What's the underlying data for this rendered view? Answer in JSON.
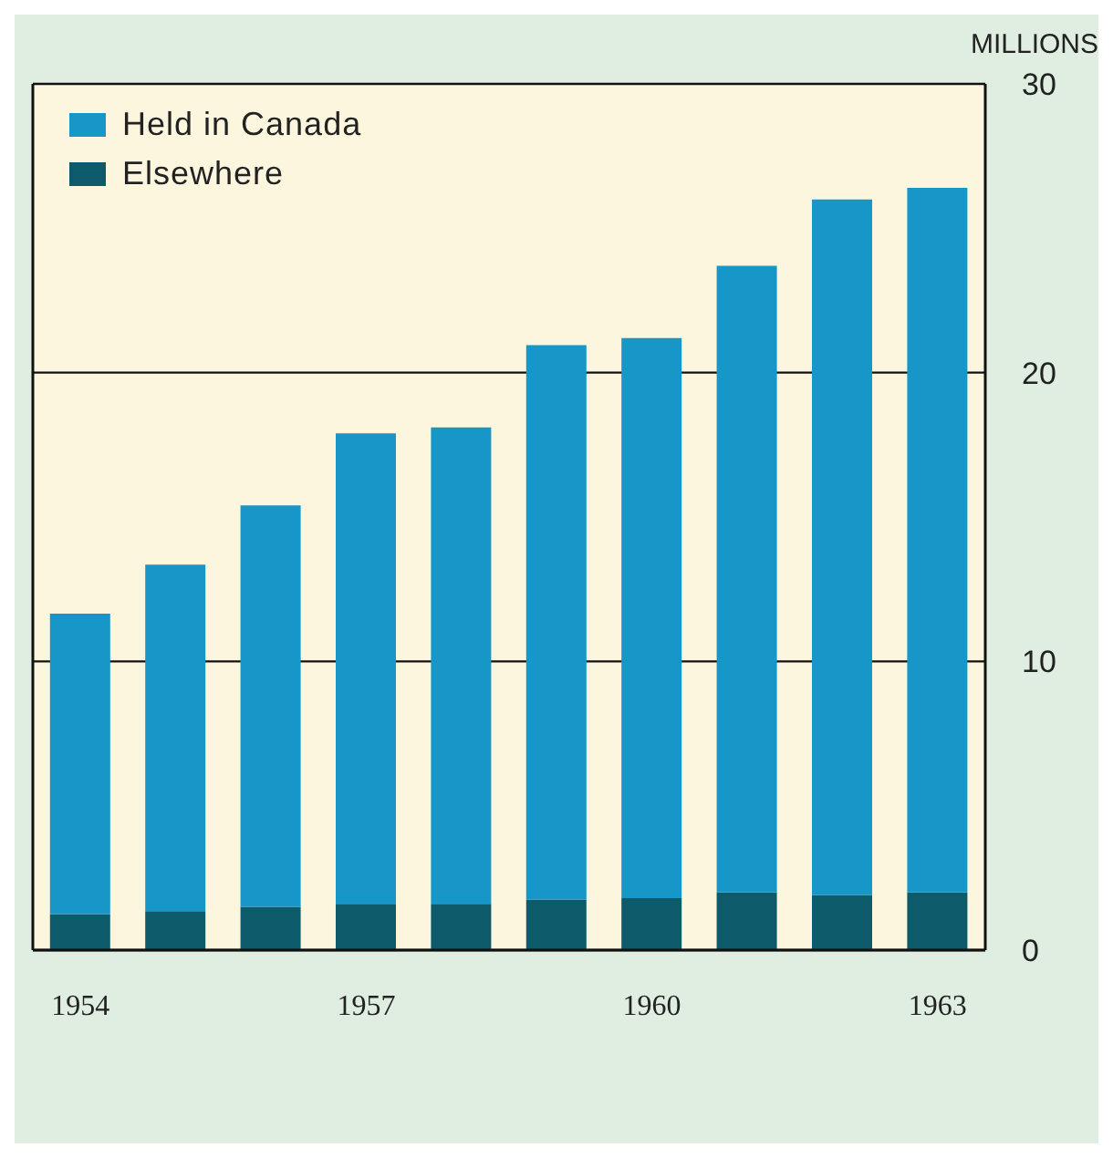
{
  "chart_data": {
    "type": "bar",
    "ylabel": "MILLIONS",
    "categories": [
      "1954",
      null,
      null,
      "1957",
      null,
      null,
      "1960",
      null,
      null,
      "1963"
    ],
    "series": [
      {
        "name": "Elsewhere",
        "color": "#0c5a6a",
        "values": [
          1.25,
          1.35,
          1.5,
          1.6,
          1.6,
          1.75,
          1.8,
          2.0,
          1.9,
          2.0
        ]
      },
      {
        "name": "Held in Canada",
        "color": "#1797c8",
        "values": [
          10.4,
          12.0,
          13.9,
          16.3,
          16.5,
          19.2,
          19.4,
          21.7,
          24.1,
          24.4
        ]
      }
    ],
    "stacked": true,
    "ylim": [
      0,
      30
    ],
    "yticks": [
      0,
      10,
      20,
      30
    ],
    "grid": "y",
    "legend": "top left"
  }
}
